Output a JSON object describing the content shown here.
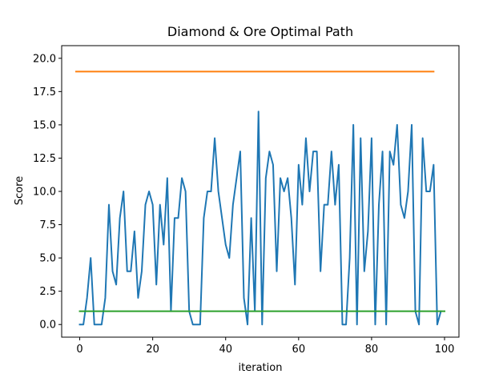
{
  "chart_data": {
    "type": "line",
    "title": "Diamond & Ore Optimal Path",
    "xlabel": "iteration",
    "ylabel": "Score",
    "xlim": [
      -4.95,
      103.95
    ],
    "ylim": [
      -0.95,
      20.95
    ],
    "xticks": [
      0,
      20,
      40,
      60,
      80,
      100
    ],
    "xtick_labels": [
      "0",
      "20",
      "40",
      "60",
      "80",
      "100"
    ],
    "yticks": [
      0.0,
      2.5,
      5.0,
      7.5,
      10.0,
      12.5,
      15.0,
      17.5,
      20.0
    ],
    "ytick_labels": [
      "0.0",
      "2.5",
      "5.0",
      "7.5",
      "10.0",
      "12.5",
      "15.0",
      "17.5",
      "20.0"
    ],
    "grid": false,
    "series": [
      {
        "color": "#1f77b4",
        "x": [
          0,
          1,
          2,
          3,
          4,
          5,
          6,
          7,
          8,
          9,
          10,
          11,
          12,
          13,
          14,
          15,
          16,
          17,
          18,
          19,
          20,
          21,
          22,
          23,
          24,
          25,
          26,
          27,
          28,
          29,
          30,
          31,
          32,
          33,
          34,
          35,
          36,
          37,
          38,
          39,
          40,
          41,
          42,
          43,
          44,
          45,
          46,
          47,
          48,
          49,
          50,
          51,
          52,
          53,
          54,
          55,
          56,
          57,
          58,
          59,
          60,
          61,
          62,
          63,
          64,
          65,
          66,
          67,
          68,
          69,
          70,
          71,
          72,
          73,
          74,
          75,
          76,
          77,
          78,
          79,
          80,
          81,
          82,
          83,
          84,
          85,
          86,
          87,
          88,
          89,
          90,
          91,
          92,
          93,
          94,
          95,
          96,
          97,
          98,
          99
        ],
        "values": [
          0,
          0,
          2,
          5,
          0,
          0,
          0,
          2,
          9,
          4,
          3,
          8,
          10,
          4,
          4,
          7,
          2,
          4,
          9,
          10,
          9,
          3,
          9,
          6,
          11,
          1,
          8,
          8,
          11,
          10,
          1,
          0,
          0,
          0,
          8,
          10,
          10,
          14,
          10,
          8,
          6,
          5,
          9,
          11,
          13,
          2,
          0,
          8,
          1,
          16,
          0,
          11,
          13,
          12,
          4,
          11,
          10,
          11,
          8,
          3,
          12,
          9,
          14,
          10,
          13,
          13,
          4,
          9,
          9,
          13,
          9,
          12,
          0,
          0,
          5,
          15,
          0,
          14,
          4,
          7,
          14,
          0,
          9,
          13,
          0,
          13,
          12,
          15,
          9,
          8,
          10,
          15,
          1,
          0,
          14,
          10,
          10,
          12,
          0,
          1
        ]
      },
      {
        "color": "#ff7f0e",
        "x": [
          -1,
          97
        ],
        "values": [
          19,
          19
        ]
      },
      {
        "color": "#2ca02c",
        "x": [
          0,
          100
        ],
        "values": [
          1,
          1
        ]
      }
    ]
  }
}
